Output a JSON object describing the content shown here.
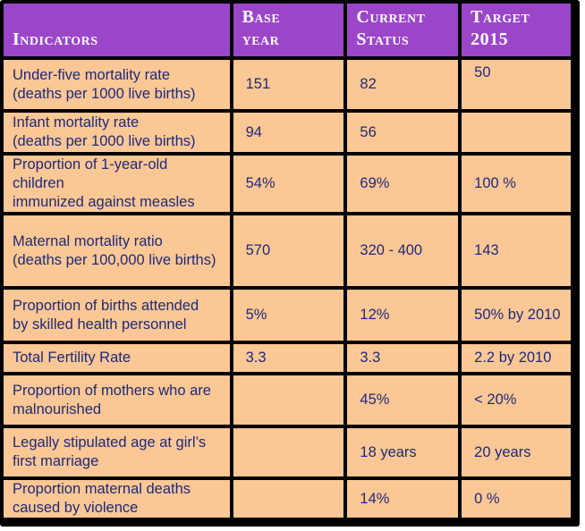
{
  "table": {
    "headers": [
      "Indicators",
      "Base\nyear",
      "Current\nStatus",
      "Target\n2015"
    ],
    "rows": [
      [
        "Under-five mortality rate\n(deaths per 1000 live births)",
        "151",
        "82",
        "50"
      ],
      [
        "Infant mortality rate\n(deaths per 1000 live births)",
        "94",
        "56",
        ""
      ],
      [
        "Proportion of 1-year-old children\nimmunized against measles",
        "54%",
        "69%",
        "100 %"
      ],
      [
        "Maternal mortality ratio\n(deaths per 100,000 live births)",
        "570",
        "320 - 400",
        "143"
      ],
      [
        "Proportion of births attended\nby skilled health personnel",
        "5%",
        "12%",
        "50% by 2010"
      ],
      [
        "Total Fertility Rate",
        "3.3",
        "3.3",
        "2.2 by 2010"
      ],
      [
        "Proportion of mothers who are\nmalnourished",
        "",
        "45%",
        "< 20%"
      ],
      [
        "Legally stipulated age at girl’s\nfirst marriage",
        "",
        "18 years",
        "20 years"
      ],
      [
        "Proportion maternal deaths\ncaused by violence",
        "",
        "14%",
        "0 %"
      ]
    ]
  },
  "colors": {
    "header_bg": "#9b46c9",
    "header_text": "#ffffff",
    "cell_bg": "#fbc795",
    "cell_text": "#1d2a7a",
    "border": "#000000"
  }
}
